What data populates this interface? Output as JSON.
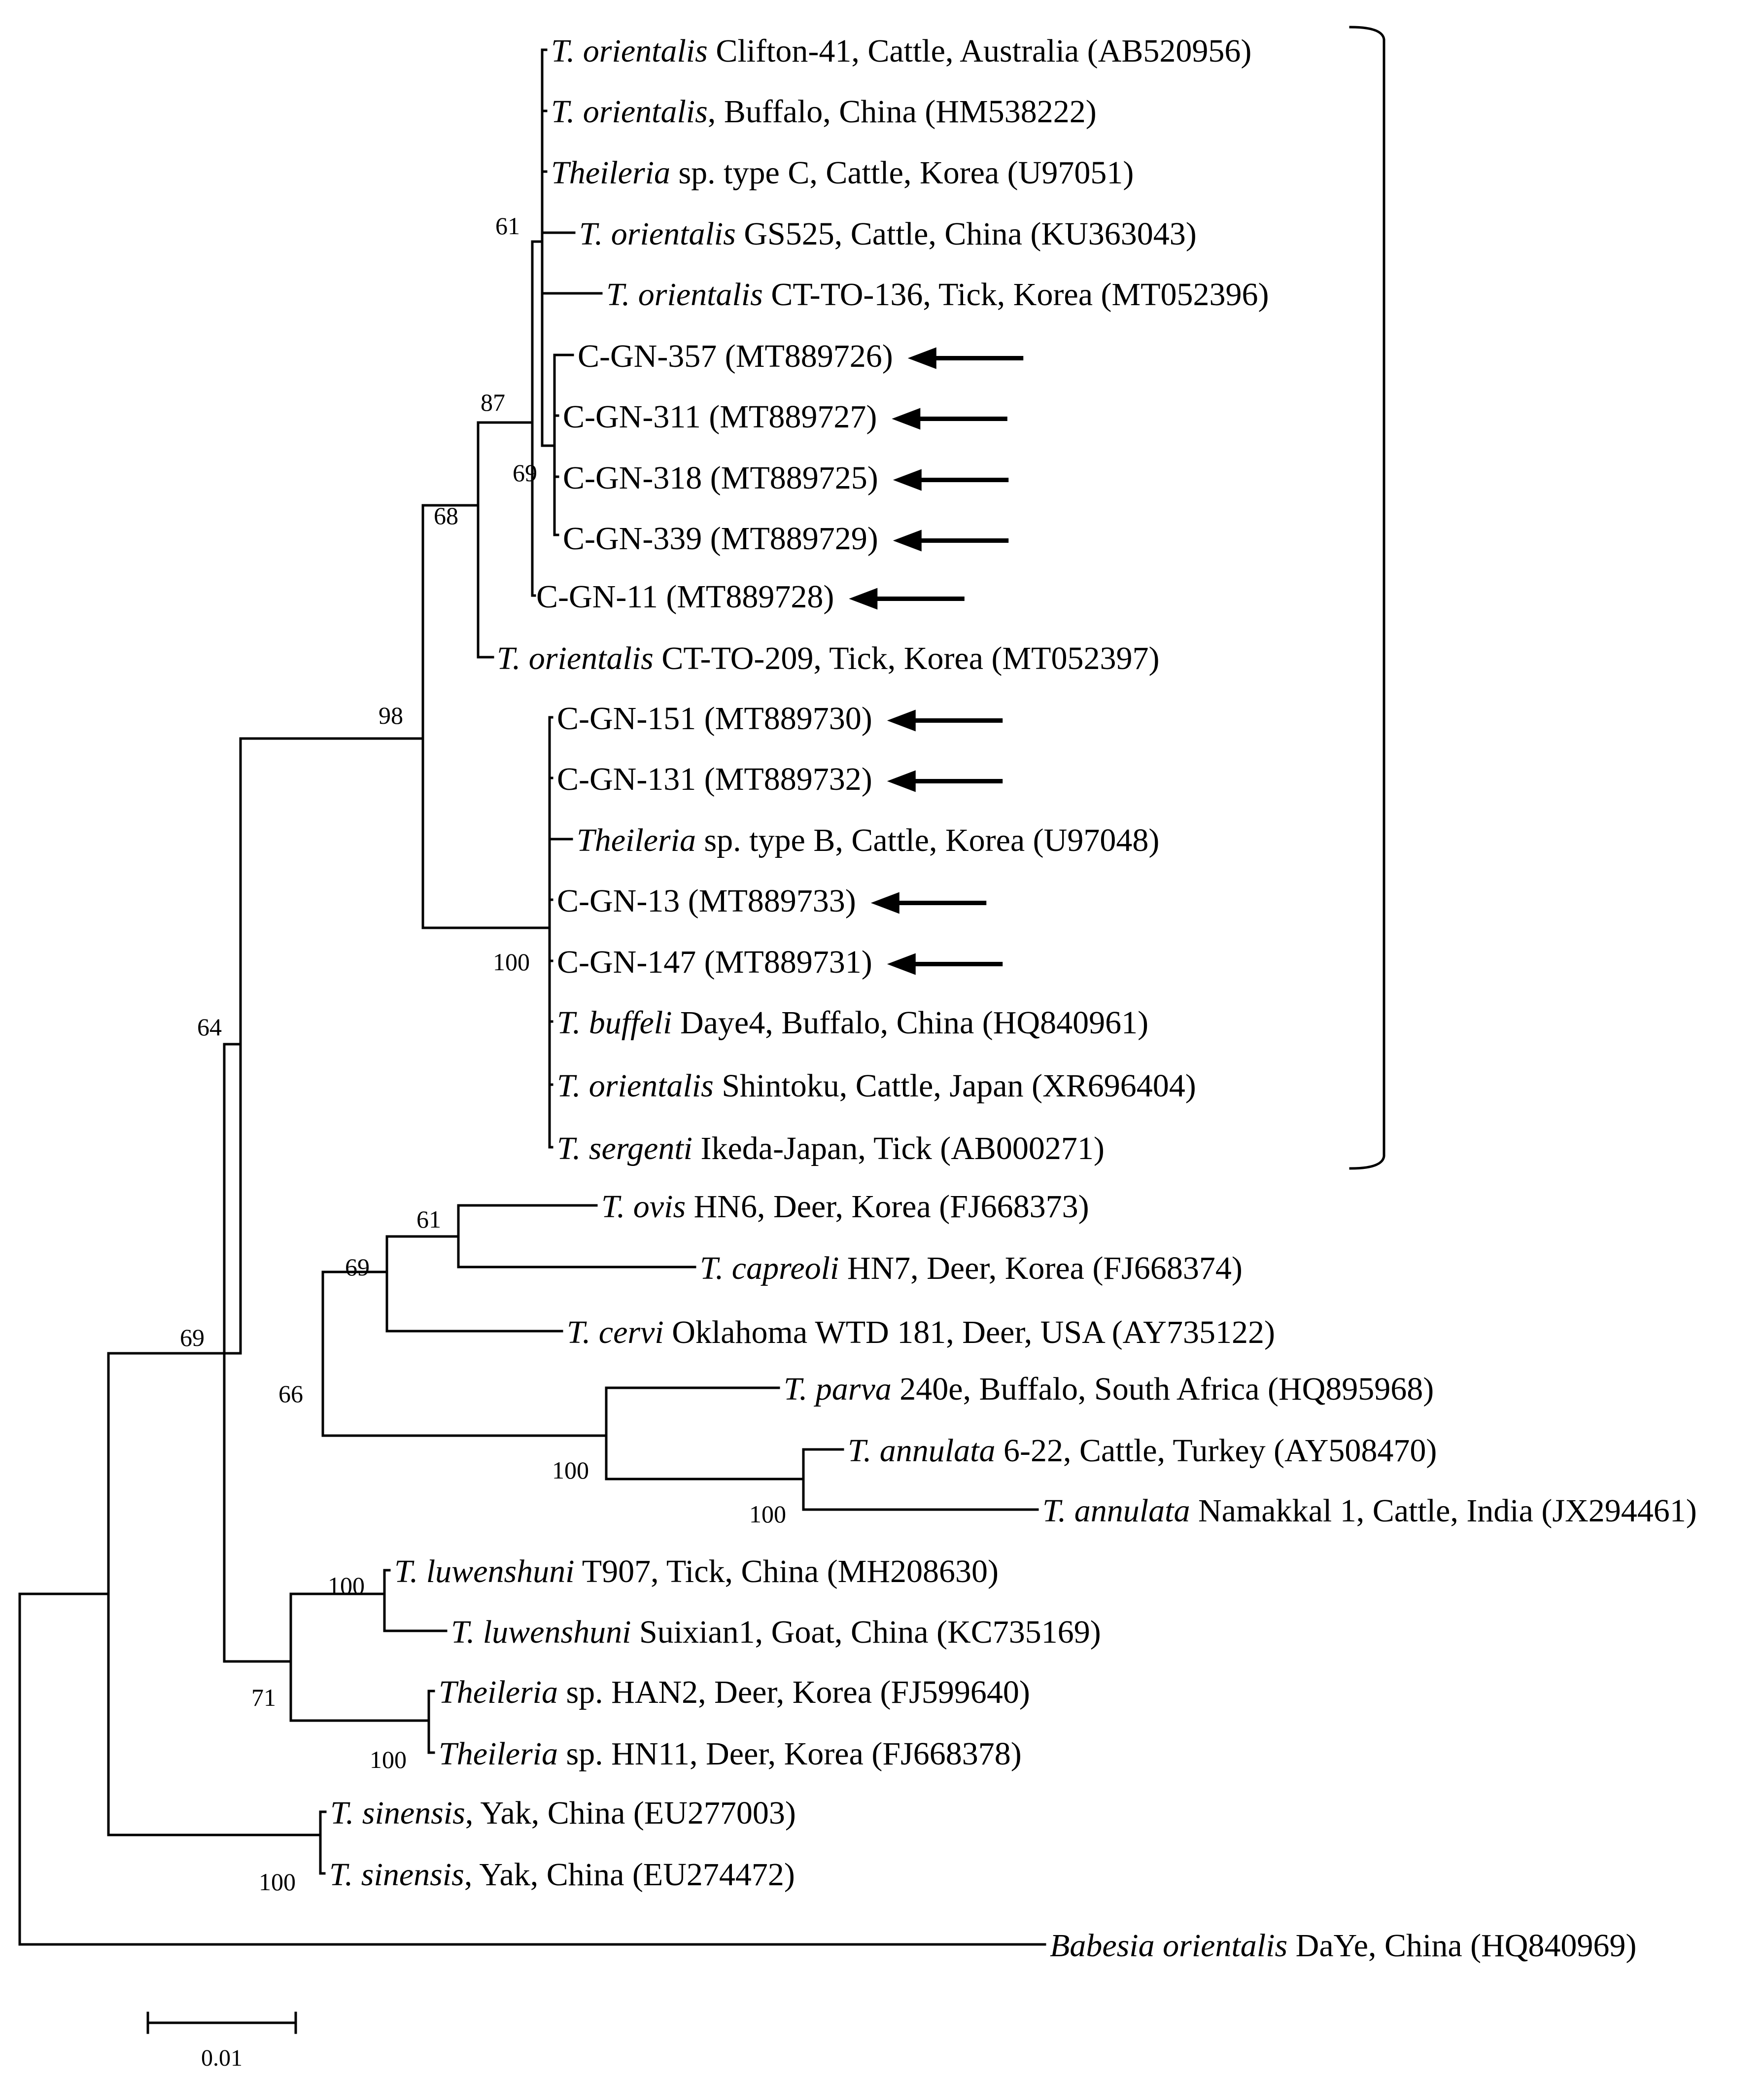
{
  "colors": {
    "ink": "#000000",
    "background": "#ffffff"
  },
  "taxa": {
    "t01": [
      {
        "text": "T. orientalis",
        "italic": true
      },
      {
        "text": " Clifton-41, Cattle, Australia (AB520956)",
        "italic": false
      }
    ],
    "t02": [
      {
        "text": "T. orientalis",
        "italic": true
      },
      {
        "text": ", Buffalo, China (HM538222)",
        "italic": false
      }
    ],
    "t03": [
      {
        "text": "Theileria",
        "italic": true
      },
      {
        "text": " sp. type C, Cattle, Korea (U97051)",
        "italic": false
      }
    ],
    "t04": [
      {
        "text": "T. orientalis",
        "italic": true
      },
      {
        "text": " GS525, Cattle, China (KU363043)",
        "italic": false
      }
    ],
    "t05": [
      {
        "text": "T. orientalis",
        "italic": true
      },
      {
        "text": " CT-TO-136, Tick, Korea (MT052396)",
        "italic": false
      }
    ],
    "t06": [
      {
        "text": "C-GN-357 (MT889726)",
        "italic": false
      }
    ],
    "t07": [
      {
        "text": "C-GN-311 (MT889727)",
        "italic": false
      }
    ],
    "t08": [
      {
        "text": "C-GN-318 (MT889725)",
        "italic": false
      }
    ],
    "t09": [
      {
        "text": "C-GN-339 (MT889729)",
        "italic": false
      }
    ],
    "t10": [
      {
        "text": "C-GN-11 (MT889728)",
        "italic": false
      }
    ],
    "t11": [
      {
        "text": "T. orientalis",
        "italic": true
      },
      {
        "text": " CT-TO-209, Tick, Korea (MT052397)",
        "italic": false
      }
    ],
    "t12": [
      {
        "text": "C-GN-151 (MT889730)",
        "italic": false
      }
    ],
    "t13": [
      {
        "text": "C-GN-131 (MT889732)",
        "italic": false
      }
    ],
    "t14": [
      {
        "text": "Theileria",
        "italic": true
      },
      {
        "text": " sp. type B, Cattle, Korea (U97048)",
        "italic": false
      }
    ],
    "t15": [
      {
        "text": "C-GN-13 (MT889733)",
        "italic": false
      }
    ],
    "t16": [
      {
        "text": "C-GN-147 (MT889731)",
        "italic": false
      }
    ],
    "t17": [
      {
        "text": "T. buffeli",
        "italic": true
      },
      {
        "text": " Daye4, Buffalo, China (HQ840961)",
        "italic": false
      }
    ],
    "t18": [
      {
        "text": "T. orientalis",
        "italic": true
      },
      {
        "text": " Shintoku, Cattle, Japan (XR696404)",
        "italic": false
      }
    ],
    "t19": [
      {
        "text": "T. sergenti",
        "italic": true
      },
      {
        "text": " Ikeda-Japan, Tick (AB000271)",
        "italic": false
      }
    ],
    "t20": [
      {
        "text": "T. ovis",
        "italic": true
      },
      {
        "text": " HN6, Deer, Korea (FJ668373)",
        "italic": false
      }
    ],
    "t21": [
      {
        "text": "T. capreoli",
        "italic": true
      },
      {
        "text": " HN7, Deer, Korea (FJ668374)",
        "italic": false
      }
    ],
    "t22": [
      {
        "text": "T. cervi",
        "italic": true
      },
      {
        "text": " Oklahoma WTD 181, Deer, USA (AY735122)",
        "italic": false
      }
    ],
    "t23": [
      {
        "text": "T. parva",
        "italic": true
      },
      {
        "text": " 240e, Buffalo, South Africa (HQ895968)",
        "italic": false
      }
    ],
    "t24": [
      {
        "text": "T. annulata",
        "italic": true
      },
      {
        "text": " 6-22, Cattle, Turkey (AY508470)",
        "italic": false
      }
    ],
    "t25": [
      {
        "text": "T. annulata",
        "italic": true
      },
      {
        "text": " Namakkal 1, Cattle, India (JX294461)",
        "italic": false
      }
    ],
    "t26": [
      {
        "text": "T. luwenshuni",
        "italic": true
      },
      {
        "text": " T907, Tick, China (MH208630)",
        "italic": false
      }
    ],
    "t27": [
      {
        "text": "T. luwenshuni",
        "italic": true
      },
      {
        "text": " Suixian1, Goat, China (KC735169)",
        "italic": false
      }
    ],
    "t28": [
      {
        "text": "Theileria",
        "italic": true
      },
      {
        "text": " sp. HAN2, Deer, Korea (FJ599640)",
        "italic": false
      }
    ],
    "t29": [
      {
        "text": "Theileria",
        "italic": true
      },
      {
        "text": " sp. HN11, Deer, Korea (FJ668378)",
        "italic": false
      }
    ],
    "t30": [
      {
        "text": "T. sinensis",
        "italic": true
      },
      {
        "text": ", Yak, China (EU277003)",
        "italic": false
      }
    ],
    "t31": [
      {
        "text": "T. sinensis",
        "italic": true
      },
      {
        "text": ", Yak, China (EU274472)",
        "italic": false
      }
    ],
    "t32": [
      {
        "text": "Babesia orientalis",
        "italic": true
      },
      {
        "text": " DaYe, China (HQ840969)",
        "italic": false
      }
    ]
  },
  "bootstrap": {
    "n61a": "61",
    "n87": "87",
    "n69a": "69",
    "n68": "68",
    "n98": "98",
    "n100a": "100",
    "n64": "64",
    "n61b": "61",
    "n69b": "69",
    "n66": "66",
    "n100b": "100",
    "n100c": "100",
    "n69c": "69",
    "n100d": "100",
    "n71": "71",
    "n100e": "100",
    "n100f": "100"
  },
  "marked_samples": [
    "t06",
    "t07",
    "t08",
    "t09",
    "t10",
    "t12",
    "t13",
    "t15",
    "t16"
  ],
  "bracketed_clade": "T. orientalis group (t01–t19)",
  "scale_bar": {
    "value": 0.01,
    "label": "0.01"
  }
}
